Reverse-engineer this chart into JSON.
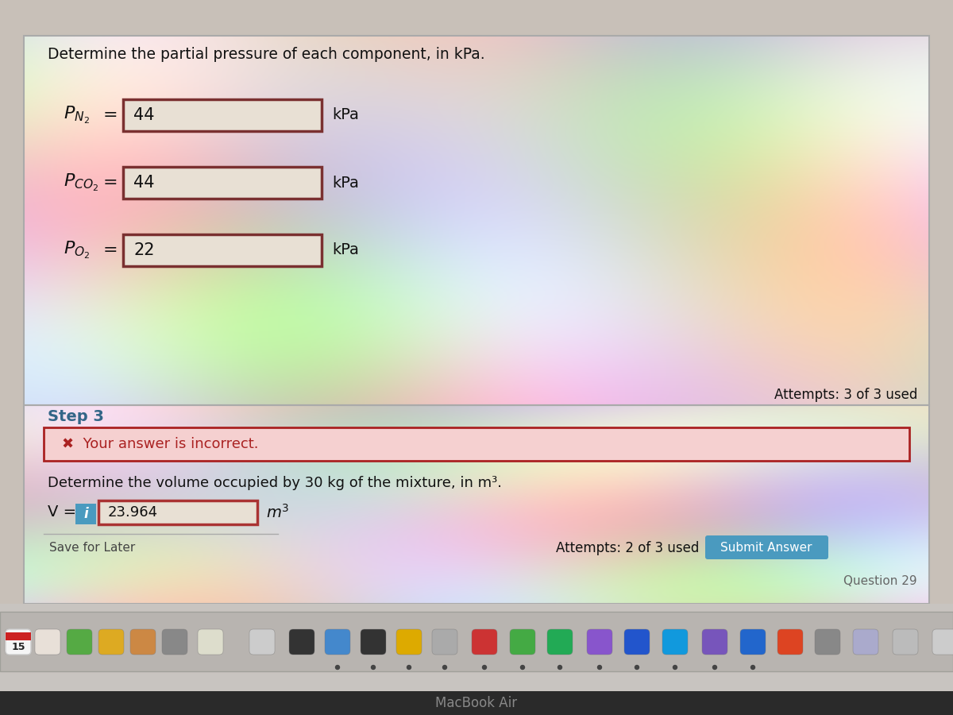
{
  "title_text": "Determine the partial pressure of each component, in kPa.",
  "step3_text": "Step 3",
  "row1_value": "44",
  "row1_unit": "kPa",
  "row2_value": "44",
  "row2_unit": "kPa",
  "row3_value": "22",
  "row3_unit": "kPa",
  "attempts_top": "Attempts: 3 of 3 used",
  "error_text": "✖  Your answer is incorrect.",
  "volume_question": "Determine the volume occupied by 30 kg of the mixture, in m³.",
  "volume_label": "V =",
  "volume_value": "23.964",
  "volume_unit": "m³",
  "attempts_bottom": "Attempts: 2 of 3 used",
  "submit_text": "Submit Answer",
  "save_text": "Save for Later",
  "question_nav": "Question 29",
  "bg_outer": "#c8c0b8",
  "section_top_bg": "#e8e4e0",
  "section_bot_bg": "#e0dcd8",
  "input_box_color": "#e8e0d4",
  "input_border_top": "#7a3030",
  "input_border_vol": "#aa3333",
  "error_box_bg": "#f5d0d0",
  "error_box_border": "#aa2222",
  "error_text_color": "#aa2222",
  "submit_btn_bg": "#4a9abf",
  "submit_btn_text_color": "#ffffff",
  "info_icon_bg": "#4a9abf",
  "taskbar_bg": "#c8c4c0",
  "dock_bg": "#b8b4b0",
  "text_dark": "#111111",
  "text_gray": "#444444",
  "text_step3": "#336688"
}
